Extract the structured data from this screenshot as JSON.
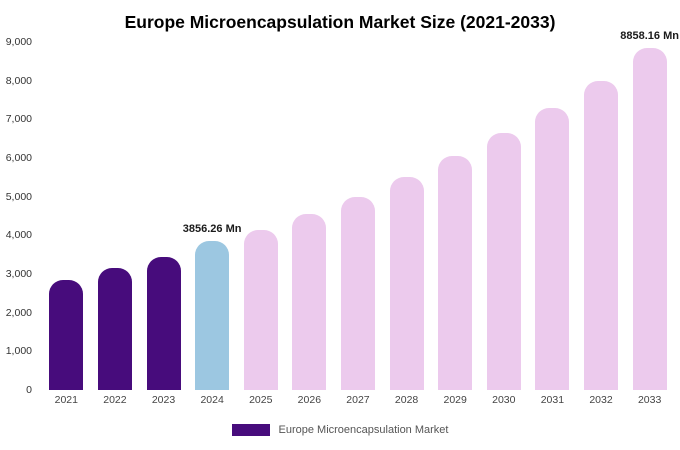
{
  "legend": {
    "label": "Europe Microencapsulation Market",
    "swatch_color": "#470c7c"
  },
  "colors": {
    "historical_bar": "#470c7c",
    "current_year_bar": "#9cc7e1",
    "forecast_bar": "#eccaed",
    "background": "#ffffff"
  },
  "chart_data": {
    "type": "bar",
    "title": "Europe Microencapsulation Market Size (2021-2033)",
    "xlabel": "",
    "ylabel": "",
    "categories": [
      "2021",
      "2022",
      "2023",
      "2024",
      "2025",
      "2026",
      "2027",
      "2028",
      "2029",
      "2030",
      "2031",
      "2032",
      "2033"
    ],
    "values": [
      2850,
      3150,
      3450,
      3856.26,
      4150,
      4560,
      5000,
      5500,
      6050,
      6650,
      7290,
      7980,
      8858.16
    ],
    "ylim": [
      0,
      9000
    ],
    "yticks": [
      0,
      1000,
      2000,
      3000,
      4000,
      5000,
      6000,
      7000,
      8000,
      9000
    ],
    "ytick_labels": [
      "0",
      "1,000",
      "2,000",
      "3,000",
      "4,000",
      "5,000",
      "6,000",
      "7,000",
      "8,000",
      "9,000"
    ],
    "bar_colors": [
      "#470c7c",
      "#470c7c",
      "#470c7c",
      "#9cc7e1",
      "#eccaed",
      "#eccaed",
      "#eccaed",
      "#eccaed",
      "#eccaed",
      "#eccaed",
      "#eccaed",
      "#eccaed",
      "#eccaed"
    ],
    "annotations": [
      {
        "index": 3,
        "text": "3856.26 Mn"
      },
      {
        "index": 12,
        "text": "8858.16 Mn"
      }
    ],
    "grid": false,
    "legend_position": "bottom"
  }
}
